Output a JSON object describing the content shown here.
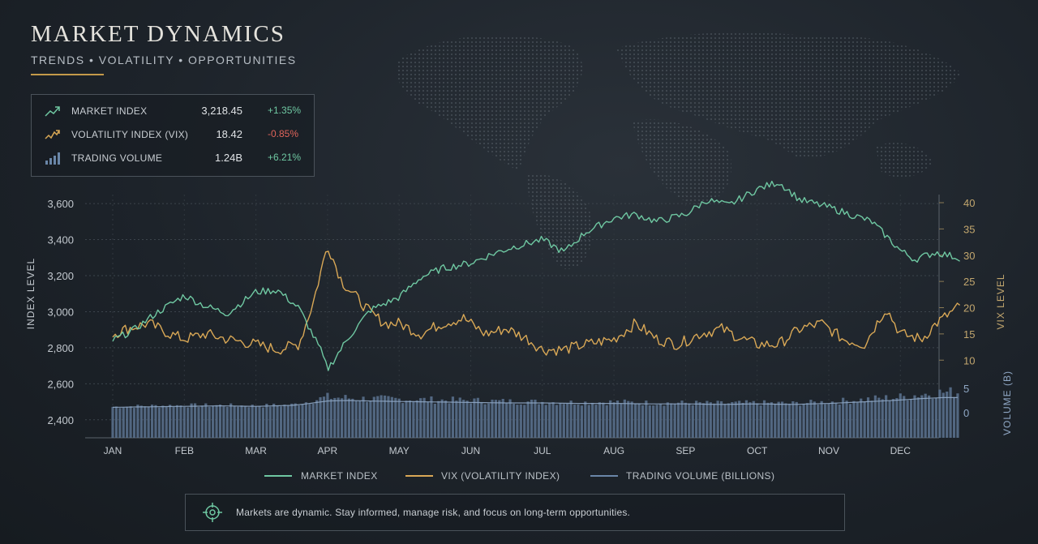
{
  "header": {
    "title": "MARKET DYNAMICS",
    "subtitle": "TRENDS • VOLATILITY • OPPORTUNITIES"
  },
  "stats": [
    {
      "label": "MARKET INDEX",
      "value": "3,218.45",
      "change": "+1.35%",
      "direction": "up",
      "icon": "trend-up-icon"
    },
    {
      "label": "VOLATILITY INDEX (VIX)",
      "value": "18.42",
      "change": "-0.85%",
      "direction": "down",
      "icon": "volatility-icon"
    },
    {
      "label": "TRADING VOLUME",
      "value": "1.24B",
      "change": "+6.21%",
      "direction": "up",
      "icon": "bar-chart-icon"
    }
  ],
  "legend": {
    "index": "MARKET INDEX",
    "vix": "VIX (VOLATILITY INDEX)",
    "volume": "TRADING VOLUME (BILLIONS)"
  },
  "footer": {
    "message": "Markets are dynamic. Stay informed, manage risk, and focus on long-term opportunities.",
    "icon": "target-icon"
  },
  "colors": {
    "index": "#6fc8a2",
    "vix": "#d9a856",
    "volume": "#5c7391",
    "volume_avg": "#8fa7c4",
    "positive": "#6fc8a2",
    "negative": "#e0645a",
    "accent": "#c49a4a"
  },
  "chart_data": {
    "type": "line",
    "x_categories": [
      "JAN",
      "FEB",
      "MAR",
      "APR",
      "MAY",
      "JUN",
      "JUL",
      "AUG",
      "SEP",
      "OCT",
      "NOV",
      "DEC"
    ],
    "axes": {
      "left": {
        "label": "INDEX LEVEL",
        "range": [
          2300,
          3650
        ],
        "ticks": [
          "2,400",
          "2,600",
          "2,800",
          "3,000",
          "3,200",
          "3,400",
          "3,600"
        ],
        "tick_values": [
          2400,
          2600,
          2800,
          3000,
          3200,
          3400,
          3600
        ]
      },
      "right_vix": {
        "label": "VIX LEVEL",
        "range": [
          0,
          40
        ],
        "ticks": [
          "10",
          "15",
          "20",
          "25",
          "30",
          "35",
          "40"
        ]
      },
      "right_volume": {
        "label": "VOLUME (B)",
        "range": [
          0,
          5
        ],
        "ticks": [
          "0",
          "5"
        ]
      }
    },
    "grid": true,
    "series": [
      {
        "name": "MARKET INDEX",
        "axis": "left",
        "x": [
          0,
          0.3,
          0.6,
          1.0,
          1.3,
          1.6,
          2.0,
          2.3,
          2.6,
          2.9,
          3.0,
          3.3,
          3.6,
          4.0,
          4.3,
          4.6,
          5.0,
          5.3,
          5.6,
          6.0,
          6.3,
          6.6,
          7.0,
          7.3,
          7.6,
          8.0,
          8.3,
          8.6,
          9.0,
          9.3,
          9.6,
          10.0,
          10.3,
          10.6,
          11.0,
          11.2,
          11.5,
          11.8
        ],
        "values": [
          2840,
          2900,
          2990,
          3090,
          3030,
          2990,
          3110,
          3120,
          3020,
          2790,
          2680,
          2860,
          3010,
          3080,
          3190,
          3240,
          3270,
          3320,
          3360,
          3400,
          3330,
          3440,
          3520,
          3540,
          3500,
          3540,
          3620,
          3590,
          3680,
          3720,
          3620,
          3580,
          3540,
          3500,
          3340,
          3290,
          3330,
          3300
        ]
      },
      {
        "name": "VIX (VOLATILITY INDEX)",
        "axis": "right_vix",
        "x": [
          0,
          0.2,
          0.5,
          0.8,
          1.0,
          1.3,
          1.6,
          2.0,
          2.3,
          2.6,
          2.8,
          3.0,
          3.2,
          3.4,
          3.6,
          3.8,
          4.0,
          4.3,
          4.6,
          4.9,
          5.2,
          5.5,
          5.8,
          6.0,
          6.3,
          6.6,
          7.0,
          7.3,
          7.6,
          7.9,
          8.2,
          8.5,
          8.8,
          9.0,
          9.3,
          9.6,
          9.9,
          10.2,
          10.5,
          10.8,
          11.0,
          11.3,
          11.5,
          11.8
        ],
        "values": [
          15,
          16,
          17,
          15,
          14,
          15,
          14,
          13,
          12,
          13,
          21,
          32,
          25,
          22,
          19,
          17,
          17,
          15,
          17,
          18,
          15,
          16,
          14,
          12,
          12,
          13,
          14,
          17,
          14,
          13,
          15,
          16,
          14,
          13,
          13,
          16,
          17,
          14,
          13,
          20,
          15,
          14,
          17,
          20
        ]
      },
      {
        "name": "TRADING VOLUME (BILLIONS)",
        "axis": "right_volume",
        "type": "bar",
        "x": [
          0,
          0.5,
          1.0,
          1.5,
          2.0,
          2.5,
          2.7,
          3.0,
          3.3,
          3.6,
          4.0,
          4.5,
          5.0,
          5.5,
          6.0,
          6.5,
          7.0,
          7.5,
          8.0,
          8.5,
          9.0,
          9.5,
          10.0,
          10.3,
          10.6,
          11.0,
          11.3,
          11.6
        ],
        "values": [
          1.2,
          1.4,
          1.5,
          1.5,
          1.4,
          1.6,
          2.2,
          3.2,
          3.0,
          2.8,
          2.8,
          2.6,
          2.5,
          2.3,
          2.2,
          2.1,
          2.2,
          2.0,
          2.0,
          1.9,
          2.0,
          1.9,
          2.2,
          2.5,
          2.8,
          3.2,
          3.8,
          4.2
        ],
        "avg_values": [
          1.1,
          1.2,
          1.3,
          1.4,
          1.3,
          1.5,
          1.8,
          2.4,
          2.5,
          2.4,
          2.3,
          2.2,
          2.1,
          2.0,
          2.0,
          1.9,
          1.9,
          1.8,
          1.8,
          1.7,
          1.8,
          1.7,
          1.9,
          2.1,
          2.3,
          2.6,
          2.9,
          3.1
        ]
      }
    ]
  }
}
